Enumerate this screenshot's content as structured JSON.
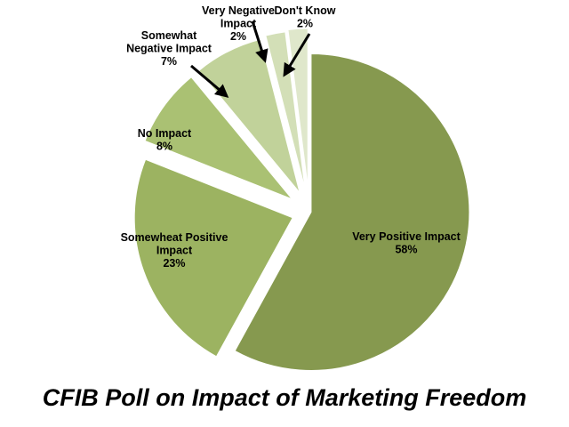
{
  "chart_data": {
    "type": "pie",
    "title": "CFIB Poll on Impact of Marketing Freedom",
    "slices": [
      {
        "label_lines": [
          "Very Positive Impact",
          "58%"
        ],
        "value": 58,
        "color": "#86994f"
      },
      {
        "label_lines": [
          "Somewheat Positive",
          "Impact",
          "23%"
        ],
        "value": 23,
        "color": "#9cb361"
      },
      {
        "label_lines": [
          "No Impact",
          "8%"
        ],
        "value": 8,
        "color": "#aac173"
      },
      {
        "label_lines": [
          "Somewhat",
          "Negative Impact",
          "7%"
        ],
        "value": 7,
        "color": "#c1d29a"
      },
      {
        "label_lines": [
          "Very Negative",
          "Impact",
          "2%"
        ],
        "value": 2,
        "color": "#d3dfb7"
      },
      {
        "label_lines": [
          "Don't Know",
          "2%"
        ],
        "value": 2,
        "color": "#dfe7cb"
      }
    ],
    "exploded": true,
    "legend": "none"
  }
}
